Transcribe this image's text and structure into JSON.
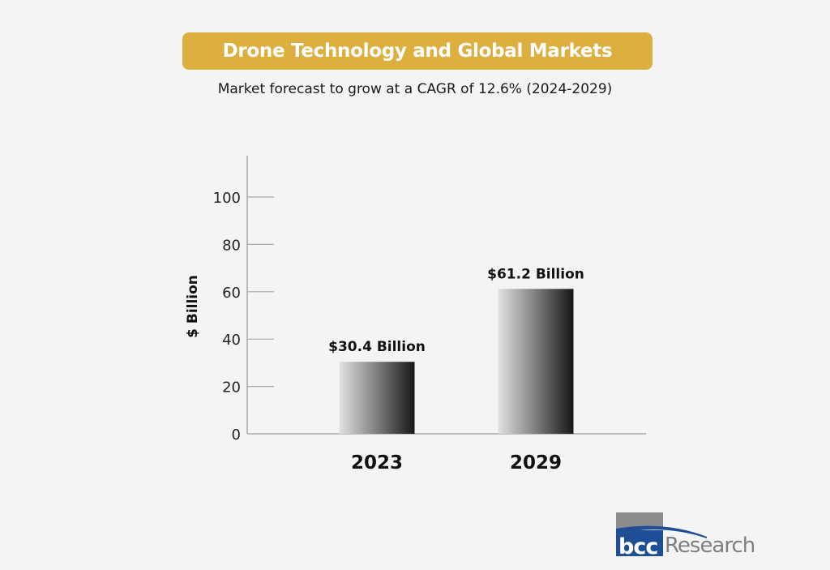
{
  "header": {
    "title": "Drone Technology and Global Markets",
    "subtitle": "Market forecast to grow at a CAGR of 12.6% (2024-2029)"
  },
  "chart_data": {
    "type": "bar",
    "title": "Drone Technology and Global Markets",
    "subtitle": "Market forecast to grow at a CAGR of 12.6% (2024-2029)",
    "categories": [
      "2023",
      "2029"
    ],
    "values": [
      30.4,
      61.2
    ],
    "data_labels": [
      "$30.4 Billion",
      "$61.2 Billion"
    ],
    "xlabel": "",
    "ylabel": "$ Billion",
    "ylim": [
      0,
      118
    ],
    "yticks": [
      0,
      20,
      40,
      60,
      80,
      100
    ],
    "grid": false,
    "legend": "none"
  },
  "colors": {
    "banner": "#dcaf3e",
    "bar_light": "#e2e0df",
    "bar_dark": "#1a1a1a",
    "axis": "#a8a8a8",
    "logo_blue": "#1f4e96",
    "logo_gray": "#8c8c8c"
  },
  "logo": {
    "brand_mark": "bcc",
    "brand_text": "Research"
  }
}
